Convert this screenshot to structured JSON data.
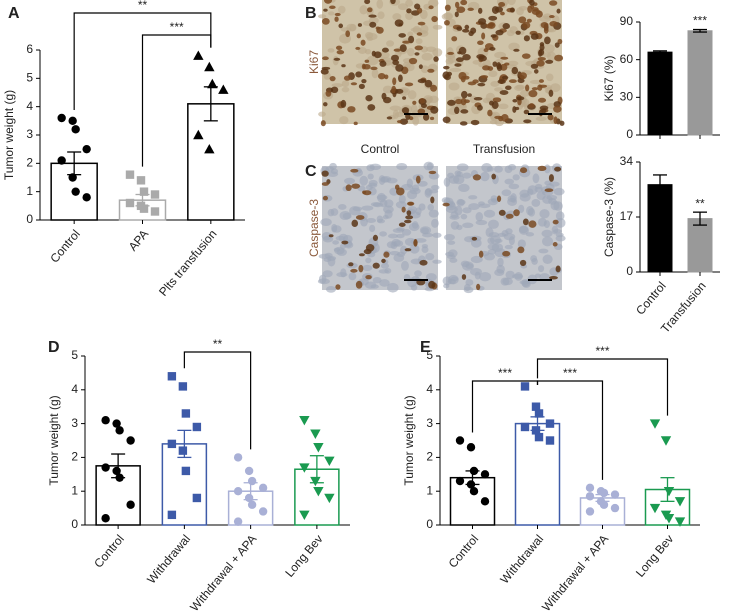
{
  "micrographs": {
    "rows": [
      {
        "label": "Ki67"
      },
      {
        "label": "Caspase-3"
      }
    ],
    "columns": [
      "Control",
      "Transfusion"
    ]
  },
  "chart_data": [
    {
      "type": "bar",
      "panel": "A",
      "ylabel": "Tumor weight (g)",
      "bar_style": "outline",
      "categories": [
        "Control",
        "APA",
        "Plts transfusion"
      ],
      "values": [
        2.0,
        0.7,
        4.1
      ],
      "errors": [
        0.4,
        0.2,
        0.6
      ],
      "points": [
        [
          3.6,
          3.5,
          3.2,
          2.5,
          2.1,
          1.5,
          1.0,
          0.8
        ],
        [
          1.6,
          1.4,
          1.0,
          0.9,
          0.6,
          0.5,
          0.4,
          0.3
        ],
        [
          5.8,
          5.4,
          4.8,
          4.6,
          3.0,
          2.5
        ]
      ],
      "colors": [
        "#000000",
        "#aaaaaa",
        "#000000"
      ],
      "markers": [
        "circle",
        "square",
        "triangle-up"
      ],
      "ylim": [
        0,
        6
      ],
      "yticks": [
        0,
        1,
        2,
        3,
        4,
        5,
        6
      ],
      "annotations": [
        {
          "between": [
            1,
            2
          ],
          "label": "***"
        },
        {
          "between": [
            0,
            2
          ],
          "label": "**"
        }
      ]
    },
    {
      "type": "bar",
      "panel": "B",
      "ylabel": "Ki67 (%)",
      "bar_style": "filled",
      "categories": [
        null,
        null
      ],
      "values": [
        66,
        83
      ],
      "errors": [
        1,
        1
      ],
      "colors": [
        "#000000",
        "#999999"
      ],
      "ylim": [
        0,
        90
      ],
      "yticks": [
        0,
        30,
        60,
        90
      ],
      "annotations": [
        {
          "between": [
            1
          ],
          "label": "***"
        }
      ]
    },
    {
      "type": "bar",
      "panel": "C",
      "ylabel": "Caspase-3 (%)",
      "bar_style": "filled",
      "categories": [
        "Control",
        "Transfusion"
      ],
      "values": [
        27,
        16.5
      ],
      "errors": [
        3,
        2
      ],
      "colors": [
        "#000000",
        "#999999"
      ],
      "ylim": [
        0,
        34
      ],
      "yticks": [
        0,
        17,
        34
      ],
      "annotations": [
        {
          "between": [
            1
          ],
          "label": "**"
        }
      ]
    },
    {
      "type": "bar",
      "panel": "D",
      "ylabel": "Tumor weight (g)",
      "bar_style": "outline",
      "categories": [
        "Control",
        "Withdrawal",
        "Withdrawal + APA",
        "Long Bev"
      ],
      "values": [
        1.75,
        2.4,
        1.0,
        1.65
      ],
      "errors": [
        0.35,
        0.4,
        0.25,
        0.4
      ],
      "points": [
        [
          3.1,
          3.0,
          2.8,
          2.5,
          1.7,
          1.6,
          1.4,
          0.6,
          0.2
        ],
        [
          4.4,
          4.1,
          3.3,
          2.9,
          2.4,
          2.2,
          1.6,
          0.8,
          0.3
        ],
        [
          2.0,
          1.6,
          1.3,
          1.1,
          1.0,
          0.8,
          0.6,
          0.4,
          0.1
        ],
        [
          3.1,
          2.7,
          2.3,
          1.9,
          1.7,
          1.3,
          1.0,
          0.8,
          0.3
        ]
      ],
      "colors": [
        "#000000",
        "#3d5aa8",
        "#a9b0d6",
        "#1a9a50"
      ],
      "markers": [
        "circle",
        "square",
        "circle",
        "triangle-down"
      ],
      "ylim": [
        0,
        5
      ],
      "yticks": [
        0,
        1,
        2,
        3,
        4,
        5
      ],
      "annotations": [
        {
          "between": [
            1,
            2
          ],
          "label": "**"
        }
      ]
    },
    {
      "type": "bar",
      "panel": "E",
      "ylabel": "Tumor weight (g)",
      "bar_style": "outline",
      "categories": [
        "Control",
        "Withdrawal",
        "Withdrawal + APA",
        "Long Bev"
      ],
      "values": [
        1.4,
        3.0,
        0.8,
        1.05
      ],
      "errors": [
        0.2,
        0.2,
        0.1,
        0.35
      ],
      "points": [
        [
          2.5,
          2.3,
          1.6,
          1.5,
          1.3,
          1.2,
          1.0,
          0.7
        ],
        [
          4.1,
          3.5,
          3.3,
          3.0,
          2.9,
          2.8,
          2.6,
          2.5
        ],
        [
          1.1,
          1.0,
          0.95,
          0.9,
          0.85,
          0.7,
          0.6,
          0.5,
          0.4
        ],
        [
          3.0,
          2.5,
          1.0,
          0.7,
          0.5,
          0.3,
          0.2,
          0.1
        ]
      ],
      "colors": [
        "#000000",
        "#3d5aa8",
        "#a9b0d6",
        "#1a9a50"
      ],
      "markers": [
        "circle",
        "square",
        "circle",
        "triangle-down"
      ],
      "ylim": [
        0,
        5
      ],
      "yticks": [
        0,
        1,
        2,
        3,
        4,
        5
      ],
      "annotations": [
        {
          "between": [
            0,
            1
          ],
          "label": "***"
        },
        {
          "between": [
            1,
            2
          ],
          "label": "***"
        },
        {
          "between": [
            1,
            3
          ],
          "label": "***"
        }
      ]
    }
  ]
}
